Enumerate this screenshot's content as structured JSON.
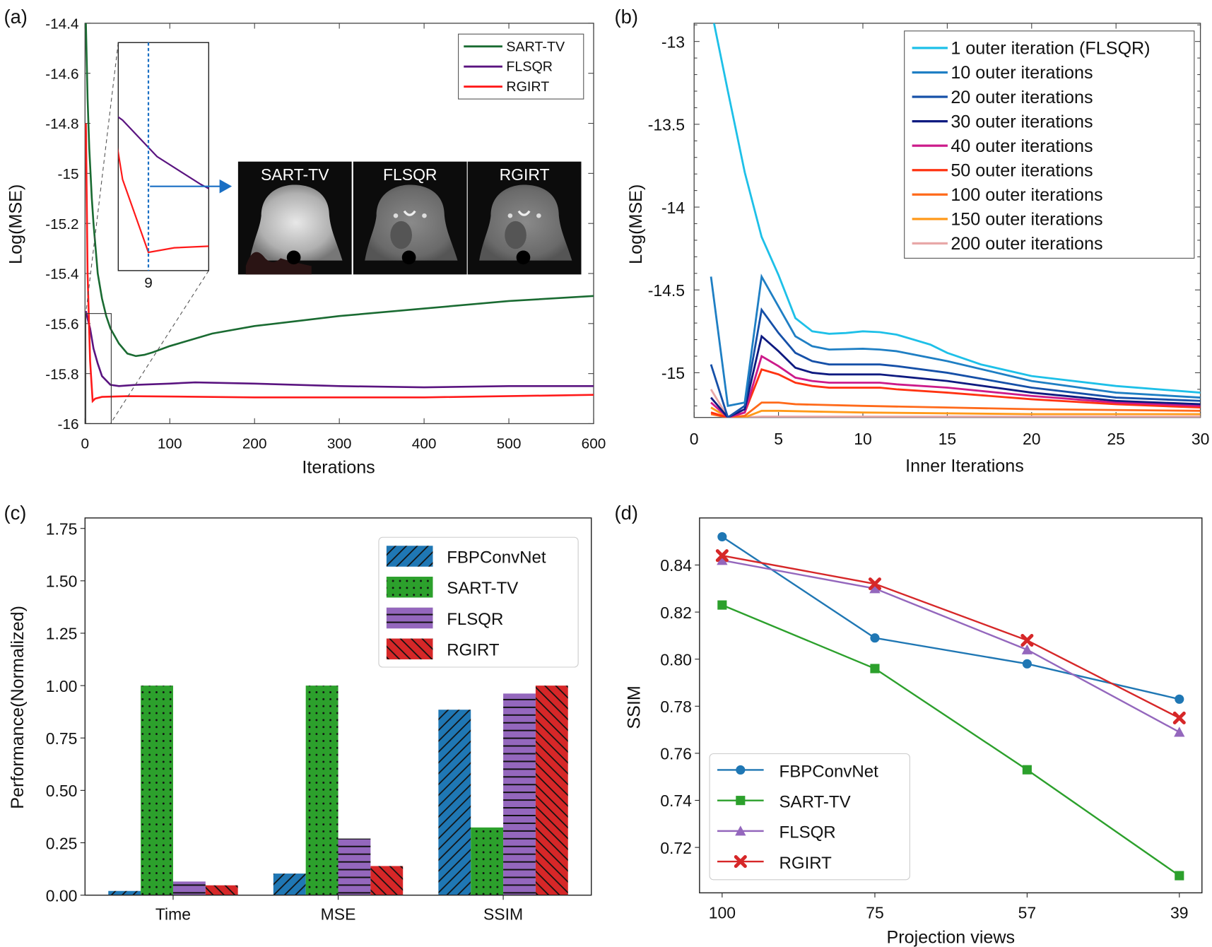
{
  "chart_data": [
    {
      "panel_label": "(a)",
      "type": "line",
      "xlabel": "Iterations",
      "ylabel": "Log(MSE)",
      "xlim": [
        0,
        600
      ],
      "ylim": [
        -16,
        -14.4
      ],
      "xticks": [
        0,
        100,
        200,
        300,
        400,
        500,
        600
      ],
      "yticks": [
        -14.4,
        -14.6,
        -14.8,
        -15,
        -15.2,
        -15.4,
        -15.6,
        -15.8,
        -16
      ],
      "legend": "top-right",
      "series": [
        {
          "name": "SART-TV",
          "color": "#1a6b32",
          "points": [
            [
              1,
              -14.4
            ],
            [
              3,
              -14.7
            ],
            [
              5,
              -14.9
            ],
            [
              8,
              -15.1
            ],
            [
              10,
              -15.2
            ],
            [
              15,
              -15.4
            ],
            [
              20,
              -15.5
            ],
            [
              25,
              -15.57
            ],
            [
              30,
              -15.62
            ],
            [
              40,
              -15.68
            ],
            [
              50,
              -15.72
            ],
            [
              60,
              -15.73
            ],
            [
              70,
              -15.725
            ],
            [
              80,
              -15.715
            ],
            [
              100,
              -15.69
            ],
            [
              150,
              -15.64
            ],
            [
              200,
              -15.61
            ],
            [
              250,
              -15.59
            ],
            [
              300,
              -15.57
            ],
            [
              400,
              -15.54
            ],
            [
              500,
              -15.51
            ],
            [
              600,
              -15.49
            ]
          ]
        },
        {
          "name": "FLSQR",
          "color": "#5a1480",
          "points": [
            [
              1,
              -15.55
            ],
            [
              3,
              -15.58
            ],
            [
              6,
              -15.62
            ],
            [
              10,
              -15.7
            ],
            [
              15,
              -15.76
            ],
            [
              20,
              -15.81
            ],
            [
              30,
              -15.845
            ],
            [
              40,
              -15.85
            ],
            [
              60,
              -15.845
            ],
            [
              100,
              -15.84
            ],
            [
              130,
              -15.835
            ],
            [
              200,
              -15.84
            ],
            [
              300,
              -15.85
            ],
            [
              400,
              -15.855
            ],
            [
              500,
              -15.85
            ],
            [
              600,
              -15.85
            ]
          ]
        },
        {
          "name": "RGIRT",
          "color": "#ff1a1a",
          "points": [
            [
              1,
              -14.8
            ],
            [
              3,
              -15.4
            ],
            [
              6,
              -15.75
            ],
            [
              9,
              -15.91
            ],
            [
              12,
              -15.9
            ],
            [
              20,
              -15.893
            ],
            [
              50,
              -15.89
            ],
            [
              200,
              -15.895
            ],
            [
              400,
              -15.895
            ],
            [
              600,
              -15.885
            ]
          ]
        }
      ],
      "inset": {
        "xtick_label": "9",
        "marker_iteration": 9,
        "marker_color": "#1a6fc4"
      },
      "images": [
        {
          "label": "SART-TV",
          "appearance": "bright-blurry"
        },
        {
          "label": "FLSQR",
          "appearance": "sharp"
        },
        {
          "label": "RGIRT",
          "appearance": "sharp"
        }
      ]
    },
    {
      "panel_label": "(b)",
      "type": "line",
      "xlabel": "Inner Iterations",
      "ylabel": "Log(MSE)",
      "xlim": [
        0,
        30
      ],
      "ylim": [
        -15.27,
        -12.89
      ],
      "xticks": [
        0,
        5,
        10,
        15,
        20,
        25,
        30
      ],
      "yticks": [
        -13,
        -13.5,
        -14,
        -14.5,
        -15
      ],
      "legend": "top-right",
      "series": [
        {
          "name": "1 outer iteration (FLSQR)",
          "color": "#1ec0e8",
          "points": [
            [
              1,
              -12.8
            ],
            [
              2,
              -13.3
            ],
            [
              3,
              -13.79
            ],
            [
              4,
              -14.18
            ],
            [
              5,
              -14.41
            ],
            [
              6,
              -14.67
            ],
            [
              7,
              -14.75
            ],
            [
              8,
              -14.765
            ],
            [
              9,
              -14.76
            ],
            [
              10,
              -14.75
            ],
            [
              11,
              -14.755
            ],
            [
              12,
              -14.77
            ],
            [
              13,
              -14.8
            ],
            [
              14,
              -14.83
            ],
            [
              15,
              -14.88
            ],
            [
              17,
              -14.95
            ],
            [
              20,
              -15.02
            ],
            [
              25,
              -15.08
            ],
            [
              30,
              -15.12
            ]
          ]
        },
        {
          "name": "10 outer iterations",
          "color": "#1f7fc4",
          "points": [
            [
              1,
              -14.42
            ],
            [
              2,
              -15.2
            ],
            [
              3,
              -15.18
            ],
            [
              4,
              -14.42
            ],
            [
              5,
              -14.6
            ],
            [
              6,
              -14.78
            ],
            [
              7,
              -14.84
            ],
            [
              8,
              -14.86
            ],
            [
              10,
              -14.855
            ],
            [
              11,
              -14.86
            ],
            [
              12,
              -14.87
            ],
            [
              15,
              -14.93
            ],
            [
              20,
              -15.05
            ],
            [
              25,
              -15.12
            ],
            [
              30,
              -15.15
            ]
          ]
        },
        {
          "name": "20 outer iterations",
          "color": "#1650a8",
          "points": [
            [
              1,
              -14.95
            ],
            [
              2,
              -15.27
            ],
            [
              3,
              -15.2
            ],
            [
              4,
              -14.62
            ],
            [
              5,
              -14.76
            ],
            [
              6,
              -14.88
            ],
            [
              7,
              -14.93
            ],
            [
              8,
              -14.95
            ],
            [
              11,
              -14.95
            ],
            [
              12,
              -14.96
            ],
            [
              15,
              -15.0
            ],
            [
              20,
              -15.09
            ],
            [
              25,
              -15.15
            ],
            [
              30,
              -15.17
            ]
          ]
        },
        {
          "name": "30 outer iterations",
          "color": "#0e1a80",
          "points": [
            [
              1,
              -15.15
            ],
            [
              2,
              -15.27
            ],
            [
              3,
              -15.22
            ],
            [
              4,
              -14.78
            ],
            [
              5,
              -14.87
            ],
            [
              6,
              -14.97
            ],
            [
              7,
              -15.0
            ],
            [
              8,
              -15.01
            ],
            [
              11,
              -15.01
            ],
            [
              12,
              -15.02
            ],
            [
              15,
              -15.05
            ],
            [
              20,
              -15.12
            ],
            [
              25,
              -15.17
            ],
            [
              30,
              -15.19
            ]
          ]
        },
        {
          "name": "40 outer iterations",
          "color": "#cc1a8a",
          "points": [
            [
              1,
              -15.18
            ],
            [
              2,
              -15.27
            ],
            [
              3,
              -15.24
            ],
            [
              4,
              -14.9
            ],
            [
              5,
              -14.96
            ],
            [
              6,
              -15.03
            ],
            [
              7,
              -15.05
            ],
            [
              8,
              -15.06
            ],
            [
              11,
              -15.06
            ],
            [
              12,
              -15.07
            ],
            [
              15,
              -15.09
            ],
            [
              20,
              -15.14
            ],
            [
              25,
              -15.18
            ],
            [
              30,
              -15.2
            ]
          ]
        },
        {
          "name": "50 outer iterations",
          "color": "#ff3311",
          "points": [
            [
              1,
              -15.24
            ],
            [
              2,
              -15.27
            ],
            [
              3,
              -15.24
            ],
            [
              4,
              -14.98
            ],
            [
              5,
              -15.01
            ],
            [
              6,
              -15.06
            ],
            [
              7,
              -15.08
            ],
            [
              8,
              -15.09
            ],
            [
              11,
              -15.09
            ],
            [
              12,
              -15.1
            ],
            [
              15,
              -15.12
            ],
            [
              20,
              -15.16
            ],
            [
              25,
              -15.19
            ],
            [
              30,
              -15.21
            ]
          ]
        },
        {
          "name": "100 outer iterations",
          "color": "#ff6a1a",
          "points": [
            [
              1,
              -15.25
            ],
            [
              2,
              -15.27
            ],
            [
              3,
              -15.26
            ],
            [
              4,
              -15.18
            ],
            [
              5,
              -15.18
            ],
            [
              6,
              -15.19
            ],
            [
              10,
              -15.2
            ],
            [
              15,
              -15.21
            ],
            [
              20,
              -15.22
            ],
            [
              30,
              -15.23
            ]
          ]
        },
        {
          "name": "150 outer iterations",
          "color": "#ff9a1a",
          "points": [
            [
              1,
              -15.21
            ],
            [
              2,
              -15.27
            ],
            [
              3,
              -15.27
            ],
            [
              4,
              -15.23
            ],
            [
              5,
              -15.23
            ],
            [
              10,
              -15.24
            ],
            [
              20,
              -15.25
            ],
            [
              30,
              -15.25
            ]
          ]
        },
        {
          "name": "200 outer iterations",
          "color": "#e8a8a8",
          "points": [
            [
              1,
              -15.1
            ],
            [
              2,
              -15.27
            ],
            [
              3,
              -15.27
            ],
            [
              4,
              -15.265
            ],
            [
              10,
              -15.265
            ],
            [
              30,
              -15.265
            ]
          ]
        }
      ]
    },
    {
      "panel_label": "(c)",
      "type": "bar",
      "xlabel": "",
      "ylabel": "Performance(Normalized)",
      "ylim": [
        0,
        1.8
      ],
      "yticks": [
        0,
        0.25,
        0.5,
        0.75,
        1.0,
        1.25,
        1.5,
        1.75
      ],
      "ytick_labels": [
        "0.00",
        "0.25",
        "0.50",
        "0.75",
        "1.00",
        "1.25",
        "1.50",
        "1.75"
      ],
      "categories": [
        "Time",
        "MSE",
        "SSIM"
      ],
      "legend": "top-right",
      "series": [
        {
          "name": "FBPConvNet",
          "color": "#1f77b4",
          "hatch": "diagonal-forward",
          "values": [
            0.02,
            0.103,
            0.885
          ]
        },
        {
          "name": "SART-TV",
          "color": "#2ca02c",
          "hatch": "dots",
          "values": [
            1.0,
            1.0,
            0.323
          ]
        },
        {
          "name": "FLSQR",
          "color": "#9467bd",
          "hatch": "horizontal",
          "values": [
            0.065,
            0.27,
            0.962
          ]
        },
        {
          "name": "RGIRT",
          "color": "#d62728",
          "hatch": "diagonal-back",
          "values": [
            0.047,
            0.139,
            1.0
          ]
        }
      ]
    },
    {
      "panel_label": "(d)",
      "type": "line",
      "xlabel": "Projection views",
      "ylabel": "SSIM",
      "ylim": [
        0.7007,
        0.86
      ],
      "yticks": [
        0.72,
        0.74,
        0.76,
        0.78,
        0.8,
        0.82,
        0.84
      ],
      "ytick_labels": [
        "0.72",
        "0.74",
        "0.76",
        "0.78",
        "0.80",
        "0.82",
        "0.84"
      ],
      "categories": [
        "100",
        "75",
        "57",
        "39"
      ],
      "legend": "bottom-left",
      "series": [
        {
          "name": "FBPConvNet",
          "color": "#1f77b4",
          "marker": "circle",
          "values": [
            0.852,
            0.809,
            0.798,
            0.783
          ]
        },
        {
          "name": "SART-TV",
          "color": "#2ca02c",
          "marker": "square",
          "values": [
            0.823,
            0.796,
            0.753,
            0.708
          ]
        },
        {
          "name": "FLSQR",
          "color": "#9467bd",
          "marker": "triangle",
          "values": [
            0.842,
            0.83,
            0.804,
            0.769
          ]
        },
        {
          "name": "RGIRT",
          "color": "#d62728",
          "marker": "x-filled",
          "values": [
            0.844,
            0.832,
            0.808,
            0.775
          ]
        }
      ]
    }
  ]
}
